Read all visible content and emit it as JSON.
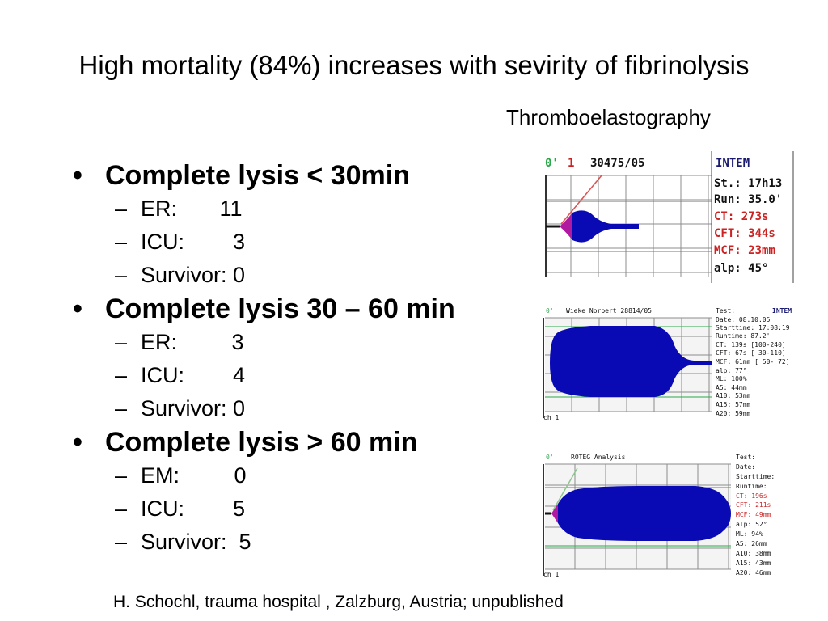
{
  "title": "High mortality (84%) increases with  sevirity of fibrinolysis",
  "subtitle": "Thromboelastography",
  "bullets": [
    {
      "label": "Complete lysis < 30min",
      "items": [
        "ER:       11",
        "ICU:        3",
        "Survivor: 0"
      ]
    },
    {
      "label": "Complete lysis 30 – 60 min",
      "items": [
        "ER:         3",
        "ICU:        4",
        "Survivor: 0"
      ]
    },
    {
      "label": "Complete lysis > 60 min",
      "items": [
        "EM:         0",
        "ICU:        5",
        "Survivor:  5"
      ]
    }
  ],
  "citation": "H. Schochl, trauma hospital , Zalzburg, Austria; unpublished",
  "teg1": {
    "time": "0'",
    "channel": "1",
    "id": "30475/05",
    "test": "INTEM",
    "rows": [
      "St.: 17h13",
      "Run: 35.0'",
      "CT:   273s",
      "CFT:  344s",
      "MCF:  23mm",
      "alp:   45°"
    ]
  },
  "teg2": {
    "time": "0'",
    "name": "Wieke Norbert 28814/05",
    "test_label": "Test:",
    "test": "INTEM",
    "rows": [
      "Date:        08.10.05",
      "Starttime:  17:08:19",
      "Runtime:       87.2'",
      "CT:   139s [100-240]",
      "CFT:   67s [ 30-110]",
      "MCF:  61mm [ 50- 72]",
      "alp:   77°",
      "ML:   100%",
      "A5:   44mm",
      "A10:  53mm",
      "A15:  57mm",
      "A20:  59mm"
    ],
    "channel": "ch 1"
  },
  "teg3": {
    "time": "0'",
    "name": "ROTEG Analysis",
    "rows": [
      "Test:",
      "Date:",
      "Starttime:",
      "Runtime:",
      "CT:    196s",
      "CFT:   211s",
      "MCF:   49mm",
      "alp:    52°",
      "ML:     94%",
      "A5:    26mm",
      "A10:   38mm",
      "A15:   43mm",
      "A20:   46mm"
    ],
    "channel": "ch 1"
  },
  "colors": {
    "trace": "#0a0ab4",
    "magenta": "#b01aa0",
    "red_text": "#cc2222",
    "grid": "#8c8c8c",
    "navy_text": "#1a1a70"
  }
}
